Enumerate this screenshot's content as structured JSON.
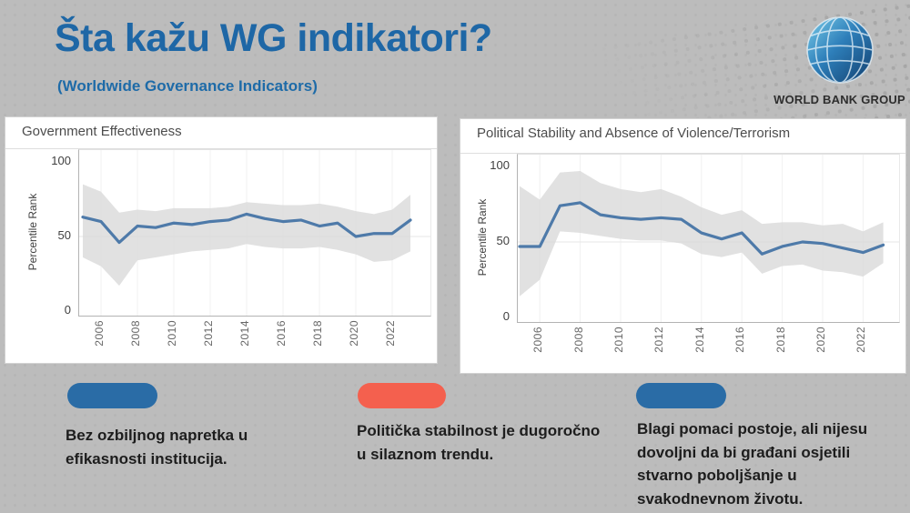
{
  "slide": {
    "title": "Šta kažu WG indikatori?",
    "subtitle": "(Worldwide Governance Indicators)"
  },
  "logo": {
    "wordmark": "WORLD BANK GROUP",
    "icon": "world-bank-globe-icon"
  },
  "colors": {
    "accent_blue": "#1e67a6",
    "pill_blue": "#2a6ca6",
    "pill_red": "#f4604e",
    "line_blue": "#4e7aa9",
    "band_gray": "#d9d9d9"
  },
  "chart_data": [
    {
      "type": "line",
      "title": "Government Effectiveness",
      "ylabel": "Percentile Rank",
      "ylim": [
        0,
        100
      ],
      "yticks": [
        100,
        50,
        0
      ],
      "grid": "faint horizontal at 50, faint vertical at even years",
      "legend": "none",
      "x": [
        2005,
        2006,
        2007,
        2008,
        2009,
        2010,
        2011,
        2012,
        2013,
        2014,
        2015,
        2016,
        2017,
        2018,
        2019,
        2020,
        2021,
        2022,
        2023
      ],
      "xtick_labels": [
        "2006",
        "2008",
        "2010",
        "2012",
        "2014",
        "2016",
        "2018",
        "2020",
        "2022"
      ],
      "series": [
        {
          "name": "percentile-rank",
          "color": "#4e7aa9",
          "values": [
            63,
            60,
            46,
            57,
            56,
            59,
            58,
            60,
            61,
            65,
            62,
            60,
            61,
            57,
            59,
            50,
            52,
            52,
            61
          ]
        }
      ],
      "band": {
        "name": "confidence-interval",
        "color": "#d9d9d9",
        "upper": [
          85,
          80,
          66,
          68,
          67,
          69,
          69,
          69,
          70,
          73,
          72,
          71,
          71,
          72,
          70,
          67,
          65,
          68,
          78
        ],
        "lower": [
          36,
          30,
          17,
          34,
          36,
          38,
          40,
          41,
          42,
          45,
          43,
          42,
          42,
          43,
          41,
          38,
          33,
          34,
          40
        ]
      }
    },
    {
      "type": "line",
      "title": "Political Stability and Absence of Violence/Terrorism",
      "ylabel": "Percentile Rank",
      "ylim": [
        0,
        100
      ],
      "yticks": [
        100,
        50,
        0
      ],
      "grid": "faint horizontal at 50, faint vertical at even years",
      "legend": "none",
      "x": [
        2005,
        2006,
        2007,
        2008,
        2009,
        2010,
        2011,
        2012,
        2013,
        2014,
        2015,
        2016,
        2017,
        2018,
        2019,
        2020,
        2021,
        2022,
        2023
      ],
      "xtick_labels": [
        "2006",
        "2008",
        "2010",
        "2012",
        "2014",
        "2016",
        "2018",
        "2020",
        "2022"
      ],
      "series": [
        {
          "name": "percentile-rank",
          "color": "#4e7aa9",
          "values": [
            47,
            47,
            74,
            76,
            68,
            66,
            65,
            66,
            65,
            56,
            52,
            56,
            42,
            47,
            50,
            49,
            46,
            43,
            48
          ]
        }
      ],
      "band": {
        "name": "confidence-interval",
        "color": "#d9d9d9",
        "upper": [
          87,
          78,
          96,
          97,
          89,
          85,
          83,
          85,
          80,
          73,
          68,
          71,
          62,
          63,
          63,
          61,
          62,
          57,
          63
        ],
        "lower": [
          14,
          25,
          57,
          56,
          54,
          52,
          51,
          51,
          49,
          42,
          40,
          43,
          29,
          34,
          35,
          31,
          30,
          27,
          36
        ]
      }
    }
  ],
  "annotations": [
    {
      "pill_color": "#2a6ca6",
      "text": "Bez ozbiljnog napretka u\nefikasnosti institucija."
    },
    {
      "pill_color": "#f4604e",
      "text": "Politička stabilnost je dugoročno\nu silaznom trendu."
    },
    {
      "pill_color": "#2a6ca6",
      "text": "Blagi pomaci postoje, ali nijesu\ndovoljni da bi građani osjetili\nstvarno poboljšanje u\nsvakodnevnom životu."
    }
  ]
}
